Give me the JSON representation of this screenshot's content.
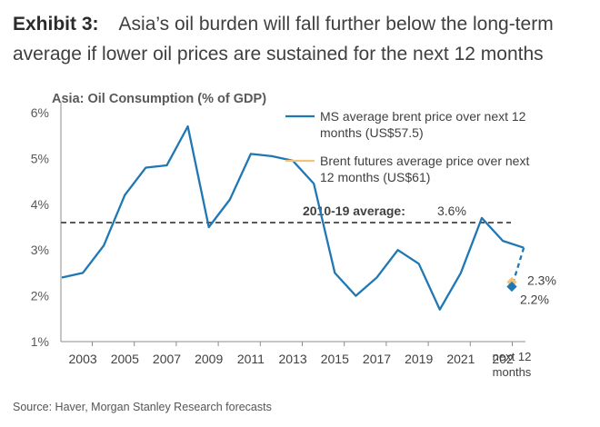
{
  "header": {
    "exhibit": "Exhibit 3:",
    "title": "Asia’s oil burden will fall further below the long-term average if lower oil prices are sustained for the next 12 months"
  },
  "footer": {
    "source": "Source: Haver, Morgan Stanley Research forecasts"
  },
  "colors": {
    "series": "#1f77b4",
    "futures": "#f2c27b",
    "average": "#5a5a5a"
  },
  "chart_data": {
    "type": "line",
    "title": "Asia: Oil Consumption (% of GDP)",
    "ylim": [
      1,
      6
    ],
    "yticks": [
      "1%",
      "2%",
      "3%",
      "4%",
      "5%",
      "6%"
    ],
    "xticks": [
      "2003",
      "2005",
      "2007",
      "2009",
      "2011",
      "2013",
      "2015",
      "2017",
      "2019",
      "2021",
      "202",
      "next 12 months"
    ],
    "grid": false,
    "legend": "top-right",
    "series": [
      {
        "name": "MS average brent price over next 12 months (US$57.5)",
        "x": [
          2002,
          2003,
          2004,
          2005,
          2006,
          2007,
          2008,
          2009,
          2010,
          2011,
          2012,
          2013,
          2014,
          2015,
          2016,
          2017,
          2018,
          2019,
          2020,
          2021,
          2022,
          2023,
          2024
        ],
        "values": [
          2.4,
          2.5,
          3.1,
          4.2,
          4.8,
          4.85,
          5.7,
          3.5,
          4.1,
          5.1,
          5.05,
          4.95,
          4.45,
          2.5,
          2.0,
          2.4,
          3.0,
          2.7,
          1.7,
          2.5,
          3.7,
          3.2,
          3.05
        ],
        "forecast": {
          "label": "next 12 months",
          "value": 2.2,
          "label_text": "2.2%"
        }
      },
      {
        "name": "Brent futures average price over next 12 months (US$61)",
        "forecast": {
          "label": "next 12 months",
          "value": 2.3,
          "label_text": "2.3%"
        }
      }
    ],
    "reference_line": {
      "label": "2010-19 average:",
      "value": 3.6,
      "value_text": "3.6%"
    }
  }
}
